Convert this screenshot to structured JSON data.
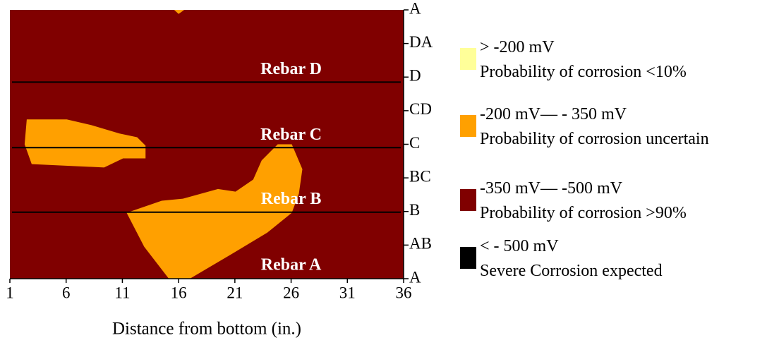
{
  "chart_data": {
    "type": "contour",
    "xlabel": "Distance from bottom (in.)",
    "xlim": [
      1,
      36
    ],
    "xticks": [
      1,
      6,
      11,
      16,
      21,
      26,
      31,
      36
    ],
    "ylim": [
      0,
      8
    ],
    "yticks": [
      {
        "value": 0,
        "label": "A"
      },
      {
        "value": 1,
        "label": "AB"
      },
      {
        "value": 2,
        "label": "B"
      },
      {
        "value": 3,
        "label": "BC"
      },
      {
        "value": 4,
        "label": "C"
      },
      {
        "value": 5,
        "label": "CD"
      },
      {
        "value": 6,
        "label": "D"
      },
      {
        "value": 7,
        "label": "DA"
      },
      {
        "value": 8,
        "label": "A"
      }
    ],
    "background_color": "#800000",
    "regions": [
      {
        "color": "#ffa000",
        "x": [
          2.5,
          6.06,
          8.25,
          10.75,
          12.31,
          13.06,
          13.06,
          11.06,
          9.38,
          2.94,
          2.31
        ],
        "y": [
          4.74,
          4.74,
          4.57,
          4.32,
          4.21,
          3.96,
          3.58,
          3.58,
          3.31,
          3.41,
          4.0
        ]
      },
      {
        "color": "#ffa000",
        "x": [
          11.38,
          14.5,
          16.38,
          19.5,
          21.06,
          22.63,
          23.38,
          24.81,
          26.06,
          27.0,
          26.69,
          26.06,
          23.88,
          20.75,
          17.0,
          15.13,
          12.94
        ],
        "y": [
          1.96,
          2.32,
          2.38,
          2.67,
          2.59,
          2.95,
          3.52,
          4.0,
          4.0,
          3.26,
          2.53,
          1.96,
          1.37,
          0.74,
          0,
          0,
          0.95
        ]
      },
      {
        "color": "#ffa000",
        "x": [
          15.6,
          16.5,
          16.0
        ],
        "y": [
          8,
          8,
          7.88
        ]
      }
    ],
    "rebars": [
      {
        "label": "Rebar D",
        "y": 5.85
      },
      {
        "label": "Rebar C",
        "y": 3.9
      },
      {
        "label": "Rebar B",
        "y": 1.98
      },
      {
        "label": "Rebar A"
      }
    ],
    "legend": [
      {
        "color": "#ffff99",
        "range": "> -200 mV",
        "description": "Probability of corrosion <10%"
      },
      {
        "color": "#ffa000",
        "range": "-200 mV— - 350 mV",
        "description": "Probability of corrosion uncertain"
      },
      {
        "color": "#800000",
        "range": "-350 mV— -500 mV",
        "description": "Probability of corrosion >90%"
      },
      {
        "color": "#000000",
        "range": "< - 500 mV",
        "description": "Severe Corrosion expected"
      }
    ]
  }
}
